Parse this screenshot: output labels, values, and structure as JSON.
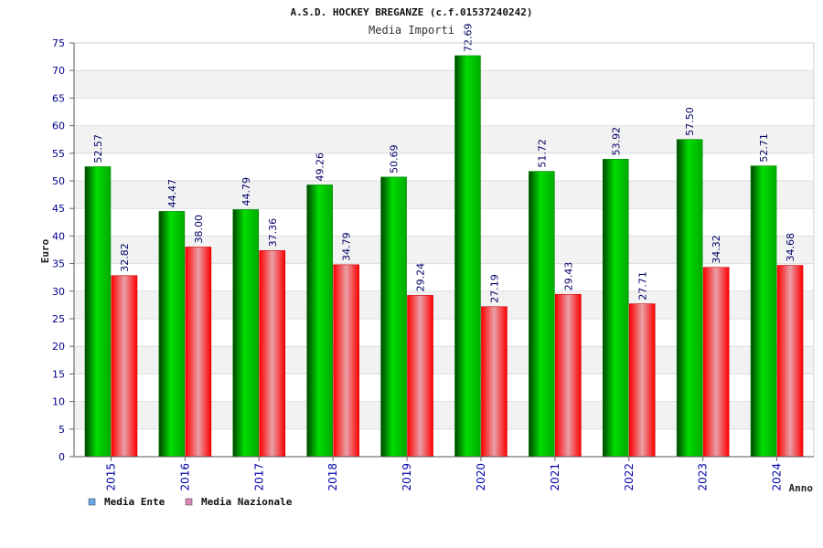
{
  "chart_data": {
    "type": "bar",
    "title": "A.S.D. HOCKEY BREGANZE (c.f.01537240242)",
    "subtitle": "Media Importi",
    "xlabel": "Anno",
    "ylabel": "Euro",
    "ylim": [
      0,
      75
    ],
    "ytick_step": 5,
    "grid": true,
    "legend_placement": "bottom-left",
    "categories": [
      "2015",
      "2016",
      "2017",
      "2018",
      "2019",
      "2020",
      "2021",
      "2022",
      "2023",
      "2024"
    ],
    "value_labels": {
      "Media Ente": [
        "52.57",
        "44.47",
        "44.79",
        "49.26",
        "50.69",
        "72.69",
        "51.72",
        "53.92",
        "57.50",
        "52.71"
      ],
      "Media Nazionale": [
        "32.82",
        "38.00",
        "37.36",
        "34.79",
        "29.24",
        "27.19",
        "29.43",
        "27.71",
        "34.32",
        "34.68"
      ]
    },
    "series": [
      {
        "name": "Media Ente",
        "color": "#00aa00",
        "legend_color": "#66aaee",
        "values": [
          52.57,
          44.47,
          44.79,
          49.26,
          50.69,
          72.69,
          51.72,
          53.92,
          57.5,
          52.71
        ]
      },
      {
        "name": "Media Nazionale",
        "color": "#ee1122",
        "legend_color": "#dd88bb",
        "values": [
          32.82,
          38.0,
          37.36,
          34.79,
          29.24,
          27.19,
          29.43,
          27.71,
          34.32,
          34.68
        ]
      }
    ]
  }
}
